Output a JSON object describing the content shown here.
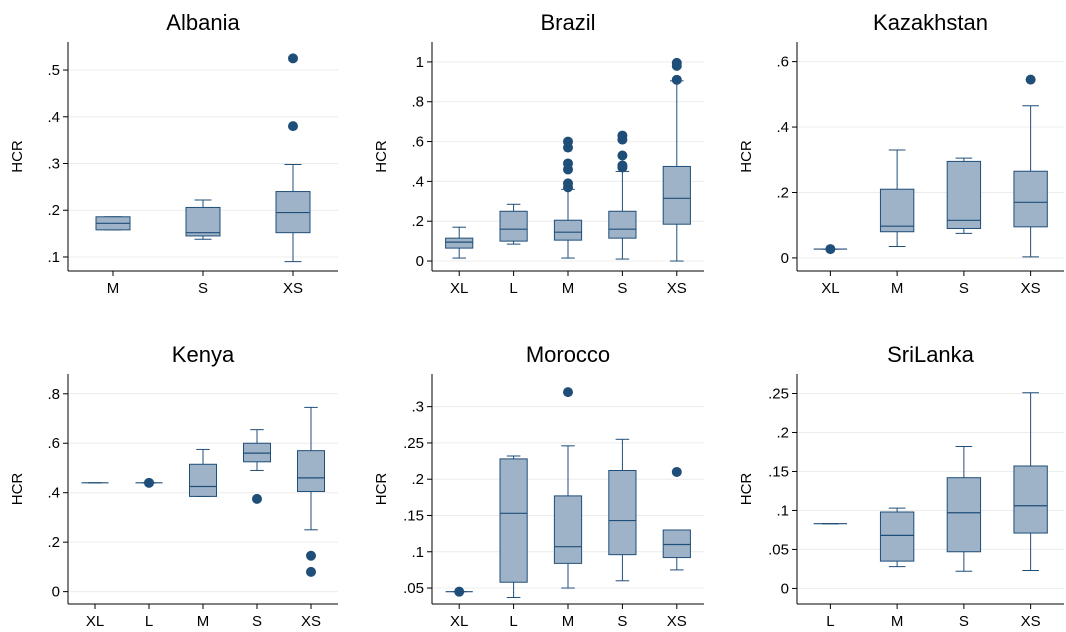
{
  "colors": {
    "box_fill": "#9fb3c8",
    "box_stroke": "#1f4e79",
    "outlier": "#1f4e79",
    "gridline": "#ececec",
    "axis": "#000000",
    "title_text": "#000000"
  },
  "chart_data": [
    {
      "type": "boxplot",
      "title": "Albania",
      "ylabel": "HCR",
      "xlabel": "",
      "ylim": [
        0.07,
        0.56
      ],
      "yticks": [
        0.1,
        0.2,
        0.3,
        0.4,
        0.5
      ],
      "ytick_labels": [
        ".1",
        ".2",
        ".3",
        ".4",
        ".5"
      ],
      "grid": true,
      "categories": [
        "M",
        "S",
        "XS"
      ],
      "boxes": [
        {
          "category": "M",
          "whisker_low": 0.158,
          "q1": 0.158,
          "median": 0.172,
          "q3": 0.186,
          "whisker_high": 0.186,
          "outliers": []
        },
        {
          "category": "S",
          "whisker_low": 0.138,
          "q1": 0.145,
          "median": 0.152,
          "q3": 0.206,
          "whisker_high": 0.222,
          "outliers": []
        },
        {
          "category": "XS",
          "whisker_low": 0.09,
          "q1": 0.152,
          "median": 0.195,
          "q3": 0.24,
          "whisker_high": 0.298,
          "outliers": [
            0.38,
            0.525
          ]
        }
      ]
    },
    {
      "type": "boxplot",
      "title": "Brazil",
      "ylabel": "HCR",
      "xlabel": "",
      "ylim": [
        -0.05,
        1.1
      ],
      "yticks": [
        0,
        0.2,
        0.4,
        0.6,
        0.8,
        1
      ],
      "ytick_labels": [
        "0",
        ".2",
        ".4",
        ".6",
        ".8",
        "1"
      ],
      "grid": true,
      "categories": [
        "XL",
        "L",
        "M",
        "S",
        "XS"
      ],
      "boxes": [
        {
          "category": "XL",
          "whisker_low": 0.015,
          "q1": 0.065,
          "median": 0.095,
          "q3": 0.115,
          "whisker_high": 0.17,
          "outliers": []
        },
        {
          "category": "L",
          "whisker_low": 0.085,
          "q1": 0.1,
          "median": 0.16,
          "q3": 0.25,
          "whisker_high": 0.285,
          "outliers": []
        },
        {
          "category": "M",
          "whisker_low": 0.015,
          "q1": 0.105,
          "median": 0.145,
          "q3": 0.205,
          "whisker_high": 0.36,
          "outliers": [
            0.37,
            0.39,
            0.46,
            0.49,
            0.57,
            0.6
          ]
        },
        {
          "category": "S",
          "whisker_low": 0.01,
          "q1": 0.115,
          "median": 0.16,
          "q3": 0.25,
          "whisker_high": 0.45,
          "outliers": [
            0.47,
            0.48,
            0.53,
            0.61,
            0.63
          ]
        },
        {
          "category": "XS",
          "whisker_low": 0.0,
          "q1": 0.185,
          "median": 0.315,
          "q3": 0.475,
          "whisker_high": 0.905,
          "outliers": [
            0.91,
            0.98,
            0.995
          ]
        }
      ]
    },
    {
      "type": "boxplot",
      "title": "Kazakhstan",
      "ylabel": "HCR",
      "xlabel": "",
      "ylim": [
        -0.04,
        0.66
      ],
      "yticks": [
        0,
        0.2,
        0.4,
        0.6
      ],
      "ytick_labels": [
        "0",
        ".2",
        ".4",
        ".6"
      ],
      "grid": true,
      "categories": [
        "XL",
        "M",
        "S",
        "XS"
      ],
      "boxes": [
        {
          "category": "XL",
          "whisker_low": 0.027,
          "q1": 0.027,
          "median": 0.027,
          "q3": 0.027,
          "whisker_high": 0.027,
          "outliers": [
            0.027
          ]
        },
        {
          "category": "M",
          "whisker_low": 0.035,
          "q1": 0.08,
          "median": 0.097,
          "q3": 0.21,
          "whisker_high": 0.33,
          "outliers": []
        },
        {
          "category": "S",
          "whisker_low": 0.075,
          "q1": 0.09,
          "median": 0.115,
          "q3": 0.295,
          "whisker_high": 0.305,
          "outliers": []
        },
        {
          "category": "XS",
          "whisker_low": 0.003,
          "q1": 0.095,
          "median": 0.17,
          "q3": 0.265,
          "whisker_high": 0.465,
          "outliers": [
            0.545
          ]
        }
      ]
    },
    {
      "type": "boxplot",
      "title": "Kenya",
      "ylabel": "HCR",
      "xlabel": "",
      "ylim": [
        -0.05,
        0.88
      ],
      "yticks": [
        0,
        0.2,
        0.4,
        0.6,
        0.8
      ],
      "ytick_labels": [
        "0",
        ".2",
        ".4",
        ".6",
        ".8"
      ],
      "grid": true,
      "categories": [
        "XL",
        "L",
        "M",
        "S",
        "XS"
      ],
      "boxes": [
        {
          "category": "XL",
          "whisker_low": 0.44,
          "q1": 0.44,
          "median": 0.44,
          "q3": 0.44,
          "whisker_high": 0.44,
          "outliers": []
        },
        {
          "category": "L",
          "whisker_low": 0.44,
          "q1": 0.44,
          "median": 0.44,
          "q3": 0.44,
          "whisker_high": 0.44,
          "outliers": [
            0.44
          ]
        },
        {
          "category": "M",
          "whisker_low": 0.385,
          "q1": 0.385,
          "median": 0.425,
          "q3": 0.515,
          "whisker_high": 0.575,
          "outliers": []
        },
        {
          "category": "S",
          "whisker_low": 0.49,
          "q1": 0.525,
          "median": 0.56,
          "q3": 0.6,
          "whisker_high": 0.655,
          "outliers": [
            0.375
          ]
        },
        {
          "category": "XS",
          "whisker_low": 0.25,
          "q1": 0.405,
          "median": 0.46,
          "q3": 0.57,
          "whisker_high": 0.745,
          "outliers": [
            0.145,
            0.08
          ]
        }
      ]
    },
    {
      "type": "boxplot",
      "title": "Morocco",
      "ylabel": "HCR",
      "xlabel": "",
      "ylim": [
        0.028,
        0.345
      ],
      "yticks": [
        0.05,
        0.1,
        0.15,
        0.2,
        0.25,
        0.3
      ],
      "ytick_labels": [
        ".05",
        ".1",
        ".15",
        ".2",
        ".25",
        ".3"
      ],
      "grid": true,
      "categories": [
        "XL",
        "L",
        "M",
        "S",
        "XS"
      ],
      "boxes": [
        {
          "category": "XL",
          "whisker_low": 0.045,
          "q1": 0.045,
          "median": 0.045,
          "q3": 0.045,
          "whisker_high": 0.045,
          "outliers": [
            0.045
          ]
        },
        {
          "category": "L",
          "whisker_low": 0.037,
          "q1": 0.058,
          "median": 0.153,
          "q3": 0.228,
          "whisker_high": 0.232,
          "outliers": []
        },
        {
          "category": "M",
          "whisker_low": 0.05,
          "q1": 0.084,
          "median": 0.107,
          "q3": 0.177,
          "whisker_high": 0.246,
          "outliers": [
            0.32
          ]
        },
        {
          "category": "S",
          "whisker_low": 0.06,
          "q1": 0.096,
          "median": 0.143,
          "q3": 0.212,
          "whisker_high": 0.255,
          "outliers": []
        },
        {
          "category": "XS",
          "whisker_low": 0.075,
          "q1": 0.092,
          "median": 0.11,
          "q3": 0.13,
          "whisker_high": 0.13,
          "outliers": [
            0.21
          ]
        }
      ]
    },
    {
      "type": "boxplot",
      "title": "SriLanka",
      "ylabel": "HCR",
      "xlabel": "",
      "ylim": [
        -0.02,
        0.275
      ],
      "yticks": [
        0,
        0.05,
        0.1,
        0.15,
        0.2,
        0.25
      ],
      "ytick_labels": [
        "0",
        ".05",
        ".1",
        ".15",
        ".2",
        ".25"
      ],
      "grid": true,
      "categories": [
        "L",
        "M",
        "S",
        "XS"
      ],
      "boxes": [
        {
          "category": "L",
          "whisker_low": 0.083,
          "q1": 0.083,
          "median": 0.083,
          "q3": 0.083,
          "whisker_high": 0.083,
          "outliers": []
        },
        {
          "category": "M",
          "whisker_low": 0.028,
          "q1": 0.035,
          "median": 0.068,
          "q3": 0.098,
          "whisker_high": 0.103,
          "outliers": []
        },
        {
          "category": "S",
          "whisker_low": 0.022,
          "q1": 0.047,
          "median": 0.097,
          "q3": 0.142,
          "whisker_high": 0.182,
          "outliers": []
        },
        {
          "category": "XS",
          "whisker_low": 0.023,
          "q1": 0.071,
          "median": 0.106,
          "q3": 0.157,
          "whisker_high": 0.251,
          "outliers": []
        }
      ]
    }
  ]
}
